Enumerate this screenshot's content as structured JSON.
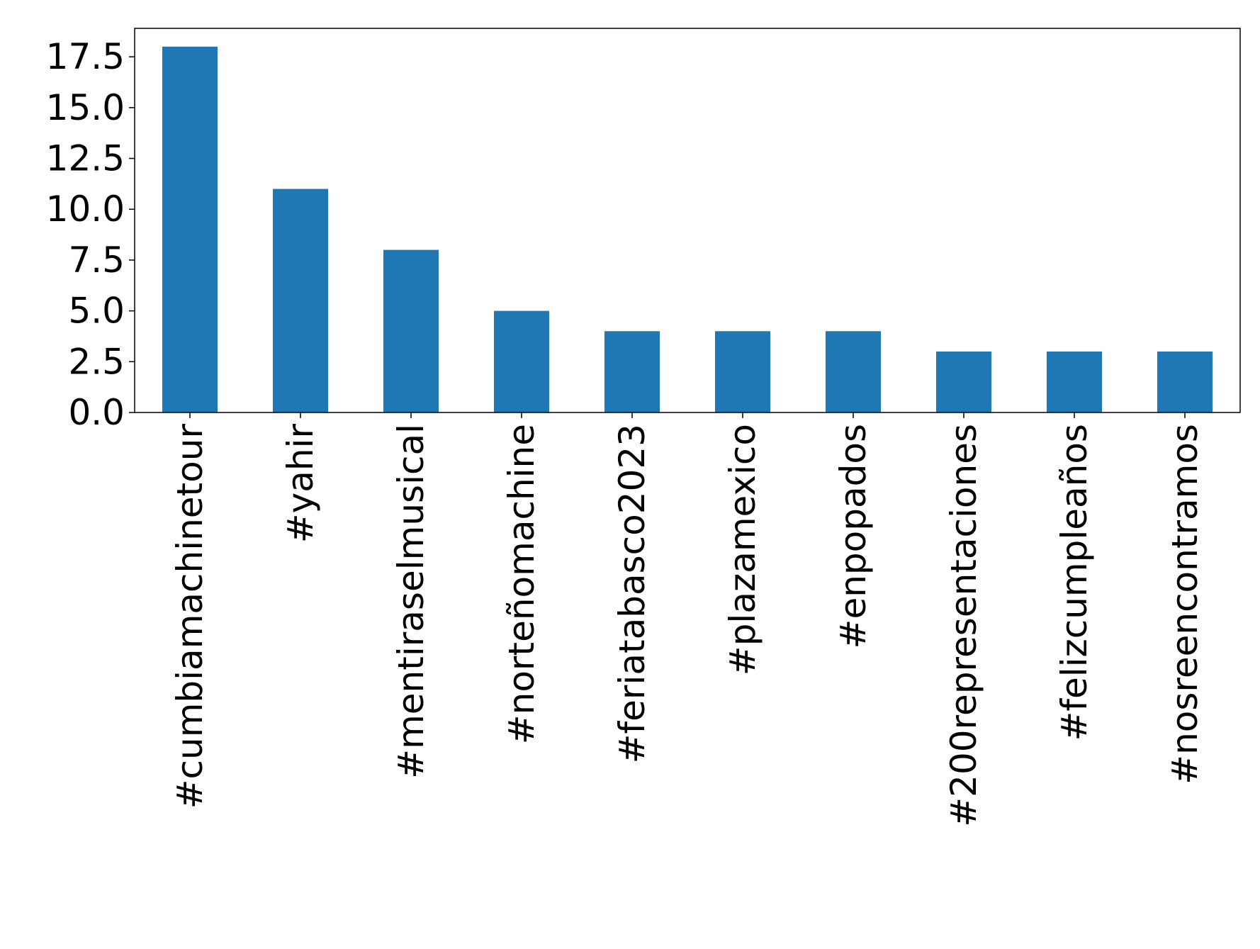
{
  "chart_data": {
    "type": "bar",
    "title": "",
    "xlabel": "",
    "ylabel": "",
    "categories": [
      "#cumbiamachinetour",
      "#yahir",
      "#mentiraselmusical",
      "#norteñomachine",
      "#feriatabasco2023",
      "#plazamexico",
      "#enpopados",
      "#200representaciones",
      "#felizcumpleaños",
      "#nosreencontramos"
    ],
    "values": [
      18,
      11,
      8,
      5,
      4,
      4,
      4,
      3,
      3,
      3
    ],
    "ylim": [
      0,
      18.9
    ],
    "yticks": [
      0.0,
      2.5,
      5.0,
      7.5,
      10.0,
      12.5,
      15.0,
      17.5
    ],
    "ytick_labels": [
      "0.0",
      "2.5",
      "5.0",
      "7.5",
      "10.0",
      "12.5",
      "15.0",
      "17.5"
    ],
    "bar_color": "#1f77b4",
    "grid": false,
    "legend": "none"
  }
}
